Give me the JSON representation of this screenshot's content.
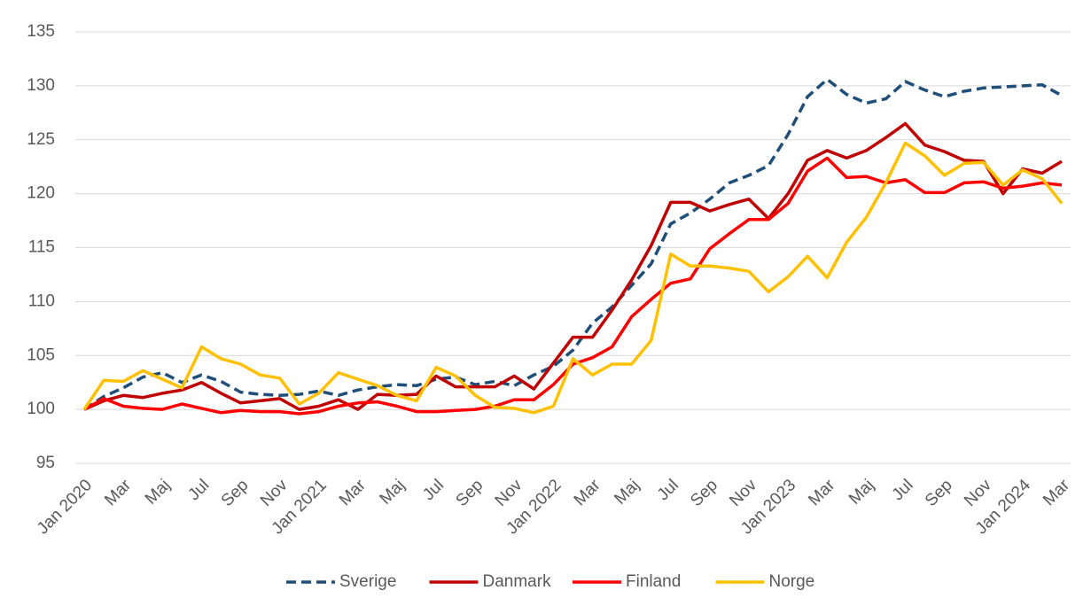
{
  "chart_data": {
    "type": "line",
    "categories": [
      "Jan 2020",
      null,
      "Mar",
      null,
      "Maj",
      null,
      "Jul",
      null,
      "Sep",
      null,
      "Nov",
      null,
      "Jan 2021",
      null,
      "Mar",
      null,
      "Maj",
      null,
      "Jul",
      null,
      "Sep",
      null,
      "Nov",
      null,
      "Jan 2022",
      null,
      "Mar",
      null,
      "Maj",
      null,
      "Jul",
      null,
      "Sep",
      null,
      "Nov",
      null,
      "Jan 2023",
      null,
      "Mar",
      null,
      "Maj",
      null,
      "Jul",
      null,
      "Sep",
      null,
      "Nov",
      null,
      "Jan 2024",
      null,
      "Mar"
    ],
    "series": [
      {
        "name": "Sverige",
        "color": "#1f4e79",
        "style": "dashed",
        "values": [
          100,
          101.2,
          102,
          103,
          103.4,
          102.5,
          103.2,
          102.6,
          101.6,
          101.4,
          101.3,
          101.4,
          101.7,
          101.3,
          101.8,
          102.1,
          102.3,
          102.2,
          102.8,
          103,
          102.3,
          102.6,
          102.2,
          103.2,
          104,
          105.5,
          108,
          109.5,
          111.5,
          113.5,
          117.2,
          118.2,
          119.5,
          121,
          121.7,
          122.6,
          125.5,
          129,
          130.6,
          129.2,
          128.4,
          128.8,
          130.4,
          129.6,
          129,
          129.5,
          129.8,
          129.9,
          130,
          130.1,
          129.1
        ]
      },
      {
        "name": "Danmark",
        "color": "#c00000",
        "style": "solid",
        "values": [
          100,
          100.8,
          101.3,
          101.1,
          101.5,
          101.8,
          102.5,
          101.5,
          100.6,
          100.8,
          101,
          100,
          100.3,
          100.9,
          100,
          101.4,
          101.3,
          101.4,
          103.1,
          102.1,
          102.1,
          102.1,
          103.1,
          101.9,
          104.3,
          106.7,
          106.7,
          109.2,
          112,
          115.2,
          119.2,
          119.2,
          118.4,
          119,
          119.5,
          117.7,
          120,
          123.1,
          124,
          123.3,
          124,
          125.2,
          126.5,
          124.5,
          123.9,
          123.1,
          123,
          120,
          122.3,
          121.9,
          123
        ]
      },
      {
        "name": "Finland",
        "color": "#ff0000",
        "style": "solid",
        "values": [
          100,
          101,
          100.3,
          100.1,
          100,
          100.5,
          100.1,
          99.7,
          99.9,
          99.8,
          99.8,
          99.6,
          99.8,
          100.3,
          100.6,
          100.7,
          100.3,
          99.8,
          99.8,
          99.9,
          100,
          100.3,
          100.9,
          100.9,
          102.3,
          104.2,
          104.8,
          105.8,
          108.6,
          110.2,
          111.7,
          112.1,
          114.9,
          116.3,
          117.6,
          117.6,
          119.1,
          122.1,
          123.3,
          121.5,
          121.6,
          121,
          121.3,
          120.1,
          120.1,
          121,
          121.1,
          120.5,
          120.7,
          121,
          120.8
        ]
      },
      {
        "name": "Norge",
        "color": "#ffc000",
        "style": "solid",
        "values": [
          100,
          102.7,
          102.6,
          103.6,
          102.8,
          102,
          105.8,
          104.7,
          104.2,
          103.2,
          102.9,
          100.5,
          101.5,
          103.4,
          102.8,
          102.2,
          101.3,
          100.8,
          103.9,
          103.1,
          101.3,
          100.2,
          100.1,
          99.7,
          100.3,
          104.7,
          103.2,
          104.2,
          104.2,
          106.4,
          114.4,
          113.3,
          113.3,
          113.1,
          112.8,
          110.9,
          112.3,
          114.2,
          112.2,
          115.5,
          117.8,
          121,
          124.7,
          123.5,
          121.7,
          122.8,
          122.9,
          120.8,
          122.2,
          121.4,
          119.1
        ]
      }
    ],
    "ylim": [
      95,
      135
    ],
    "yticks": [
      95,
      100,
      105,
      110,
      115,
      120,
      125,
      130,
      135
    ],
    "grid": true,
    "legend": "bottom"
  }
}
